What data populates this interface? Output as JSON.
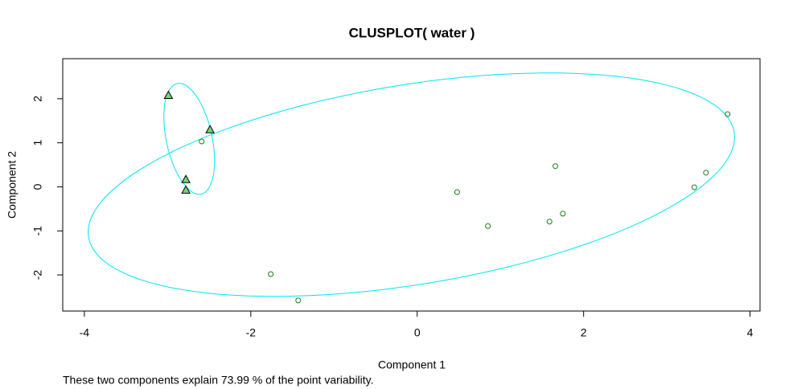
{
  "chart_data": {
    "type": "scatter",
    "title": "CLUSPLOT( water )",
    "x_label": "Component 1",
    "y_label": "Component 2",
    "subtitle": "These two components explain 73.99 % of the point variability.",
    "xlim": [
      -4.26,
      4.12
    ],
    "ylim": [
      -2.82,
      2.91
    ],
    "xticks": [
      -4,
      -2,
      0,
      2,
      4
    ],
    "yticks": [
      -2,
      -1,
      0,
      1,
      2
    ],
    "grid": false,
    "series": [
      {
        "marker": "circle",
        "color": "#1a7a1a",
        "x": [
          -2.59,
          3.73,
          1.66,
          3.47,
          3.33,
          0.48,
          1.75,
          1.59,
          0.85,
          -1.76,
          -1.43
        ],
        "values": [
          1.03,
          1.65,
          0.47,
          0.32,
          -0.01,
          -0.12,
          -0.61,
          -0.79,
          -0.89,
          -1.98,
          -2.58
        ]
      },
      {
        "marker": "triangle",
        "color": "#000000",
        "fill": "#7fd07f",
        "x": [
          -2.99,
          -2.49,
          -2.78,
          -2.78
        ],
        "values": [
          2.07,
          1.29,
          0.16,
          -0.08
        ]
      }
    ],
    "ellipses": [
      {
        "center": [
          -0.07,
          0.05
        ],
        "axis1": [
          3.88,
          1.19
        ],
        "axis2": [
          -0.19,
          2.24
        ],
        "color": "#00e5ee"
      },
      {
        "center": [
          -2.74,
          1.09
        ],
        "axis1": [
          -0.12,
          1.26
        ],
        "axis2": [
          0.28,
          0
        ],
        "color": "#00e5ee"
      }
    ]
  }
}
